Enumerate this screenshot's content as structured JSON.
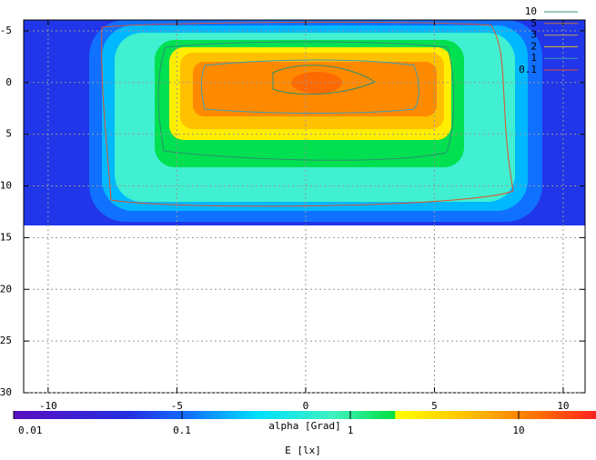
{
  "chart_data": {
    "type": "heatmap",
    "xlabel": "alpha [Grad]",
    "xlim": [
      -10.95,
      10.85
    ],
    "xticks": [
      -10,
      -5,
      0,
      5,
      10
    ],
    "ylim": [
      -6.05,
      30
    ],
    "yticks": [
      -5,
      0,
      5,
      10,
      15,
      20,
      25,
      30
    ],
    "grid": true,
    "contours": [
      {
        "name": "10",
        "color": "#2f8f6f"
      },
      {
        "name": "5",
        "color": "#b8742f"
      },
      {
        "name": "3",
        "color": "#c79a5a"
      },
      {
        "name": "2",
        "color": "#e2c21a"
      },
      {
        "name": "1",
        "color": "#3a9fb8"
      },
      {
        "name": "0.1",
        "color": "#e0502a"
      }
    ],
    "colorbar": {
      "label": "E [lx]",
      "lim": [
        0.01,
        28.8
      ],
      "ticks": [
        0.01,
        0.1,
        1,
        10
      ],
      "log": true
    }
  }
}
